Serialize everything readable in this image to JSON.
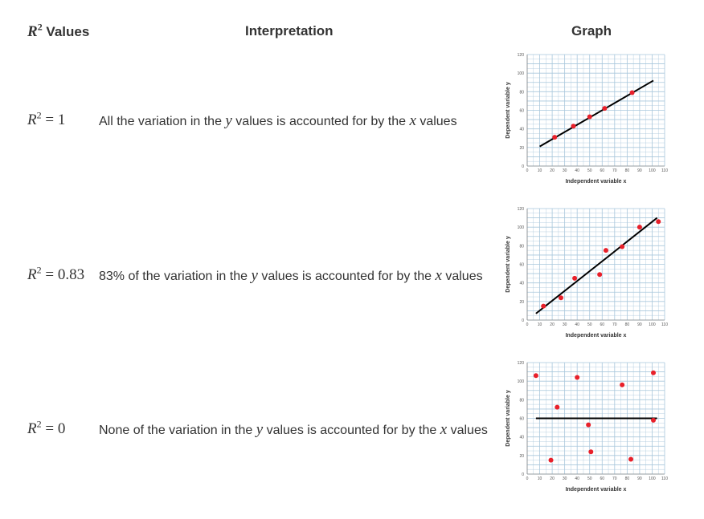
{
  "header": {
    "r2_symbol": "R",
    "r2_exp": "2",
    "values_label": "Values",
    "interpretation_label": "Interpretation",
    "graph_label": "Graph"
  },
  "rows": [
    {
      "r": "R",
      "exp": "2",
      "eq": "= 1",
      "text_pre": "All the variation in the ",
      "y_var": "y",
      "text_mid": " values is accounted for by the ",
      "x_var": "x",
      "text_post": " values"
    },
    {
      "r": "R",
      "exp": "2",
      "eq": "= 0.83",
      "text_pre": "83% of the variation in the ",
      "y_var": "y",
      "text_mid": " values is accounted for by the ",
      "x_var": "x",
      "text_post": " values"
    },
    {
      "r": "R",
      "exp": "2",
      "eq": "= 0",
      "text_pre": "None of the variation in the ",
      "y_var": "y",
      "text_mid": " values is accounted for by the ",
      "x_var": "x",
      "text_post": " values"
    }
  ],
  "colors": {
    "point": "#e8202a",
    "line": "#000000",
    "grid": "#a9c7dc",
    "text": "#333333"
  },
  "chart_data": [
    {
      "type": "scatter",
      "title": "",
      "xlabel": "Independent variable x",
      "ylabel": "Dependent variable y",
      "xlim": [
        0,
        110
      ],
      "ylim": [
        0,
        120
      ],
      "xticks": [
        0,
        10,
        20,
        30,
        40,
        50,
        60,
        70,
        80,
        90,
        100,
        110
      ],
      "yticks": [
        0,
        20,
        40,
        60,
        80,
        100,
        120
      ],
      "grid": true,
      "points": [
        {
          "x": 22,
          "y": 31
        },
        {
          "x": 37,
          "y": 43
        },
        {
          "x": 50,
          "y": 53
        },
        {
          "x": 62,
          "y": 62
        },
        {
          "x": 84,
          "y": 79
        }
      ],
      "trend_line": {
        "x": [
          10,
          101
        ],
        "y": [
          21,
          92
        ]
      }
    },
    {
      "type": "scatter",
      "title": "",
      "xlabel": "Independent variable x",
      "ylabel": "Dependent variable y",
      "xlim": [
        0,
        110
      ],
      "ylim": [
        0,
        120
      ],
      "xticks": [
        0,
        10,
        20,
        30,
        40,
        50,
        60,
        70,
        80,
        90,
        100,
        110
      ],
      "yticks": [
        0,
        20,
        40,
        60,
        80,
        100,
        120
      ],
      "grid": true,
      "points": [
        {
          "x": 13,
          "y": 15
        },
        {
          "x": 27,
          "y": 24
        },
        {
          "x": 38,
          "y": 45
        },
        {
          "x": 58,
          "y": 49
        },
        {
          "x": 63,
          "y": 75
        },
        {
          "x": 76,
          "y": 79
        },
        {
          "x": 90,
          "y": 100
        },
        {
          "x": 105,
          "y": 106
        }
      ],
      "trend_line": {
        "x": [
          7,
          104
        ],
        "y": [
          7,
          110
        ]
      }
    },
    {
      "type": "scatter",
      "title": "",
      "xlabel": "Independent variable x",
      "ylabel": "Dependent variable y",
      "xlim": [
        0,
        110
      ],
      "ylim": [
        0,
        120
      ],
      "xticks": [
        0,
        10,
        20,
        30,
        40,
        50,
        60,
        70,
        80,
        90,
        100,
        110
      ],
      "yticks": [
        0,
        20,
        40,
        60,
        80,
        100,
        120
      ],
      "grid": true,
      "points": [
        {
          "x": 7,
          "y": 106
        },
        {
          "x": 19,
          "y": 15
        },
        {
          "x": 24,
          "y": 72
        },
        {
          "x": 40,
          "y": 104
        },
        {
          "x": 49,
          "y": 53
        },
        {
          "x": 51,
          "y": 24
        },
        {
          "x": 76,
          "y": 96
        },
        {
          "x": 83,
          "y": 16
        },
        {
          "x": 101,
          "y": 58
        },
        {
          "x": 101,
          "y": 109
        }
      ],
      "trend_line": {
        "x": [
          7,
          104
        ],
        "y": [
          60,
          60
        ]
      }
    }
  ]
}
